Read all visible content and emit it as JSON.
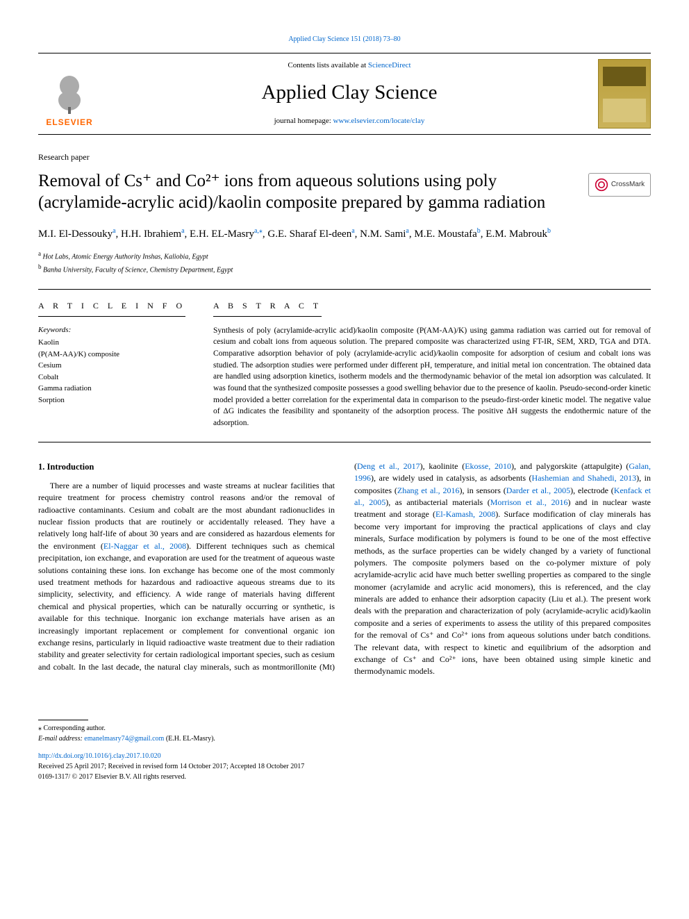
{
  "top_citation": "Applied Clay Science 151 (2018) 73–80",
  "header": {
    "contents_prefix": "Contents lists available at ",
    "contents_link": "ScienceDirect",
    "journal_name": "Applied Clay Science",
    "homepage_prefix": "journal homepage: ",
    "homepage_link": "www.elsevier.com/locate/clay",
    "elsevier_wordmark": "ELSEVIER",
    "elsevier_tree_color": "#666666",
    "elsevier_orange": "#ff6600"
  },
  "article_type": "Research paper",
  "title": "Removal of Cs⁺ and Co²⁺ ions from aqueous solutions using poly (acrylamide-acrylic acid)/kaolin composite prepared by gamma radiation",
  "crossmark_label": "CrossMark",
  "authors": [
    {
      "name": "M.I. El-Dessouky",
      "aff": "a"
    },
    {
      "name": "H.H. Ibrahiem",
      "aff": "a"
    },
    {
      "name": "E.H. EL-Masry",
      "aff": "a",
      "corresponding": true
    },
    {
      "name": "G.E. Sharaf El-deen",
      "aff": "a"
    },
    {
      "name": "N.M. Sami",
      "aff": "a"
    },
    {
      "name": "M.E. Moustafa",
      "aff": "b"
    },
    {
      "name": "E.M. Mabrouk",
      "aff": "b"
    }
  ],
  "affiliations": {
    "a": "Hot Labs, Atomic Energy Authority Inshas, Kaliobia, Egypt",
    "b": "Banha University, Faculty of Science, Chemistry Department, Egypt"
  },
  "article_info": {
    "heading": "A R T I C L E  I N F O",
    "keywords_label": "Keywords:",
    "keywords": [
      "Kaolin",
      "(P(AM-AA)/K) composite",
      "Cesium",
      "Cobalt",
      "Gamma radiation",
      "Sorption"
    ]
  },
  "abstract": {
    "heading": "A B S T R A C T",
    "text": "Synthesis of poly (acrylamide-acrylic acid)/kaolin composite (P(AM-AA)/K) using gamma radiation was carried out for removal of cesium and cobalt ions from aqueous solution. The prepared composite was characterized using FT-IR, SEM, XRD, TGA and DTA. Comparative adsorption behavior of poly (acrylamide-acrylic acid)/kaolin composite for adsorption of cesium and cobalt ions was studied. The adsorption studies were performed under different pH, temperature, and initial metal ion concentration. The obtained data are handled using adsorption kinetics, isotherm models and the thermodynamic behavior of the metal ion adsorption was calculated. It was found that the synthesized composite possesses a good swelling behavior due to the presence of kaolin. Pseudo-second-order kinetic model provided a better correlation for the experimental data in comparison to the pseudo-first-order kinetic model. The negative value of ΔG indicates the feasibility and spontaneity of the adsorption process. The positive ΔH suggests the endothermic nature of the adsorption."
  },
  "intro": {
    "heading": "1. Introduction",
    "p1": "There are a number of liquid processes and waste streams at nuclear facilities that require treatment for process chemistry control reasons and/or the removal of radioactive contaminants. Cesium and cobalt are the most abundant radionuclides in nuclear fission products that are routinely or accidentally released. They have a relatively long half-life of about 30 years and are considered as hazardous elements for the environment (",
    "r1": "El-Naggar et al., 2008",
    "p2": "). Different techniques such as chemical precipitation, ion exchange, and evaporation are used for the treatment of aqueous waste solutions containing these ions. Ion exchange has become one of the most commonly used treatment methods for hazardous and radioactive aqueous streams due to its simplicity, selectivity, and efficiency. A wide range of materials having different chemical and physical properties, which can be naturally occurring or synthetic, is available for this technique. Inorganic ion exchange materials have arisen as an increasingly important replacement or complement for conventional organic ion exchange resins, particularly in liquid radioactive waste treatment due to their radiation stability and greater selectivity for certain radiological important species, such as cesium and cobalt. In the last decade, the natural clay minerals, such as montmorillonite (Mt) (",
    "r2": "Deng et al., 2017",
    "p3": "), kaolinite (",
    "r3": "Ekosse, 2010",
    "p4": "), and palygorskite (attapulgite) (",
    "r4": "Galan, 1996",
    "p5": "), are widely used in catalysis, as adsorbents (",
    "r5": "Hashemian and Shahedi, 2013",
    "p6": "), in composites (",
    "r6": "Zhang et al., 2016",
    "p7": "), in sensors (",
    "r7": "Darder et al., 2005",
    "p8": "), electrode (",
    "r8": "Kenfack et al., 2005",
    "p9": "), as antibacterial materials (",
    "r9": "Morrison et al., 2016",
    "p10": ") and in nuclear waste treatment and storage (",
    "r10": "El-Kamash, 2008",
    "p11": "). Surface modification of clay minerals has become very important for improving the practical applications of clays and clay minerals, Surface modification by polymers is found to be one of the most effective methods, as the surface properties can be widely changed by a variety of functional polymers. The composite polymers based on the co-polymer mixture of poly acrylamide-acrylic acid have much better swelling properties as compared to the single monomer (acrylamide and acrylic acid monomers), this is referenced, and the clay minerals are added to enhance their adsorption capacity (Liu et al.). The present work deals with the preparation and characterization of poly (acrylamide-acrylic acid)/kaolin composite and a series of experiments to assess the utility of this prepared composites for the removal of Cs⁺ and Co²⁺ ions from aqueous solutions under batch conditions. The relevant data, with respect to kinetic and equilibrium of the adsorption and exchange of Cs⁺ and Co²⁺ ions, have been obtained using simple kinetic and thermodynamic models."
  },
  "footer": {
    "corr_label": "⁎ Corresponding author.",
    "email_label": "E-mail address: ",
    "email": "emanelmasry74@gmail.com",
    "email_suffix": " (E.H. EL-Masry).",
    "doi": "http://dx.doi.org/10.1016/j.clay.2017.10.020",
    "received": "Received 25 April 2017; Received in revised form 14 October 2017; Accepted 18 October 2017",
    "copyright": "0169-1317/ © 2017 Elsevier B.V. All rights reserved."
  },
  "colors": {
    "link": "#0066cc",
    "text": "#000000",
    "elsevier_orange": "#ff6600",
    "crossmark_ring": "#cc0033"
  },
  "typography": {
    "title_fontsize": 25,
    "journal_fontsize": 29,
    "body_fontsize": 12,
    "abstract_fontsize": 11.5,
    "author_fontsize": 15
  }
}
